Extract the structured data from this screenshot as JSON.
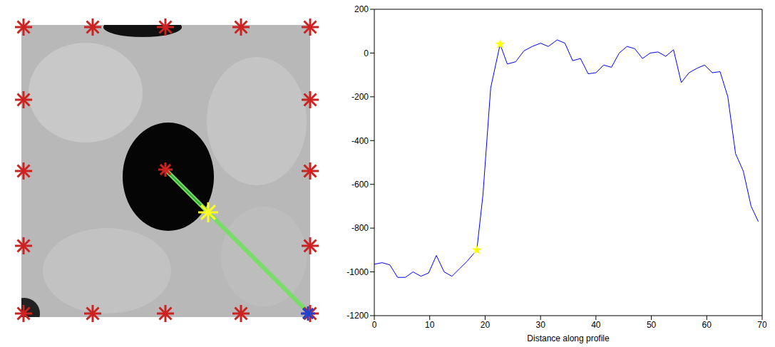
{
  "chart_data": {
    "type": "line",
    "xlabel": "Distance along profile",
    "x": [
      0,
      1.4,
      2.8,
      4.2,
      5.6,
      7,
      8.4,
      9.8,
      11.2,
      12.6,
      14,
      15.4,
      16.8,
      18.5,
      19.6,
      21,
      22.7,
      24,
      25.5,
      27,
      28.5,
      30,
      31.4,
      33,
      34.4,
      35.8,
      37.2,
      38.6,
      40,
      41.4,
      42.8,
      44.2,
      45.6,
      47,
      48.4,
      49.8,
      51.2,
      52.6,
      54,
      55.4,
      56.8,
      58.2,
      59.6,
      61,
      62.4,
      63.8,
      65.2,
      66.6,
      68,
      69.3
    ],
    "values": [
      -965,
      -958,
      -968,
      -1025,
      -1025,
      -1000,
      -1020,
      -1005,
      -925,
      -1000,
      -1020,
      -985,
      -950,
      -900,
      -650,
      -160,
      40,
      -50,
      -40,
      10,
      30,
      45,
      30,
      60,
      45,
      -35,
      -25,
      -95,
      -90,
      -55,
      -65,
      0,
      30,
      20,
      -25,
      0,
      5,
      -15,
      15,
      -135,
      -90,
      -70,
      -55,
      -90,
      -85,
      -200,
      -460,
      -540,
      -700,
      -770
    ],
    "color": "#0000ff",
    "highlights": {
      "x": [
        18.5,
        22.7
      ],
      "values": [
        -900,
        40
      ],
      "color": "#ffff00",
      "marker": "star"
    },
    "xlim": [
      0,
      70
    ],
    "xticks": [
      0,
      10,
      20,
      30,
      40,
      50,
      60,
      70
    ],
    "ylim": [
      -1200,
      200
    ],
    "yticks": [
      -1200,
      -1000,
      -800,
      -600,
      -400,
      -200,
      0,
      200
    ],
    "grid": false
  }
}
